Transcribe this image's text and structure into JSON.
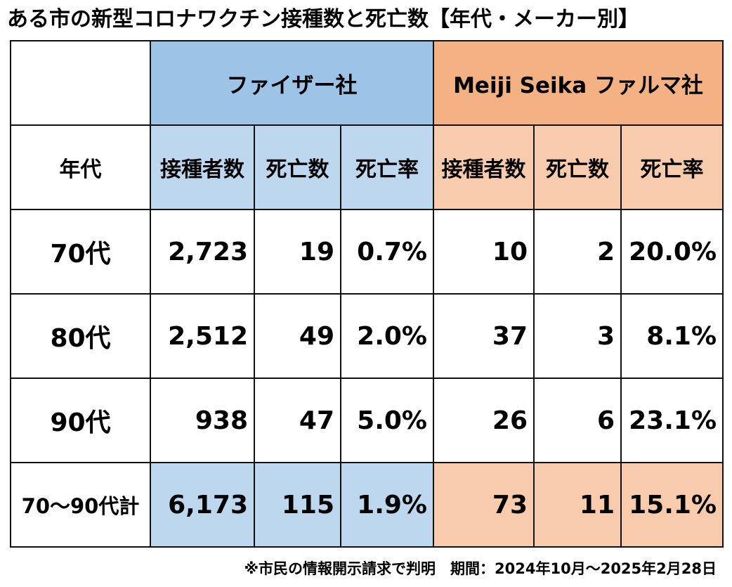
{
  "title": "ある市の新型コロナワクチン接種数と死亡数【年代・メーカー別】",
  "note": "※市民の情報開示請求で判明　期間：2024年10月～2025年2月28日",
  "chart_data": {
    "type": "table",
    "title": "ある市の新型コロナワクチン接種数と死亡数【年代・メーカー別】",
    "row_header_label": "年代",
    "makers": [
      {
        "name": "ファイザー社",
        "color": "#9dc3e6",
        "sub_color": "#bdd7ee"
      },
      {
        "name": "Meiji Seika ファルマ社",
        "color": "#f4b183",
        "sub_color": "#f8cbad"
      }
    ],
    "columns": [
      "接種者数",
      "死亡数",
      "死亡率",
      "接種者数",
      "死亡数",
      "死亡率"
    ],
    "rows": [
      {
        "age": "70代",
        "cells": [
          "2,723",
          "19",
          "0.7%",
          "10",
          "2",
          "20.0%"
        ]
      },
      {
        "age": "80代",
        "cells": [
          "2,512",
          "49",
          "2.0%",
          "37",
          "3",
          "8.1%"
        ]
      },
      {
        "age": "90代",
        "cells": [
          "938",
          "47",
          "5.0%",
          "26",
          "6",
          "23.1%"
        ]
      }
    ],
    "total": {
      "age": "70～90代計",
      "cells": [
        "6,173",
        "115",
        "1.9%",
        "73",
        "11",
        "15.1%"
      ]
    },
    "values": {
      "pfizer": {
        "vaccinated": [
          2723,
          2512,
          938,
          6173
        ],
        "deaths": [
          19,
          49,
          47,
          115
        ],
        "death_rate_pct": [
          0.7,
          2.0,
          5.0,
          1.9
        ]
      },
      "meiji_seika": {
        "vaccinated": [
          10,
          37,
          26,
          73
        ],
        "deaths": [
          2,
          3,
          6,
          11
        ],
        "death_rate_pct": [
          20.0,
          8.1,
          23.1,
          15.1
        ]
      }
    }
  }
}
